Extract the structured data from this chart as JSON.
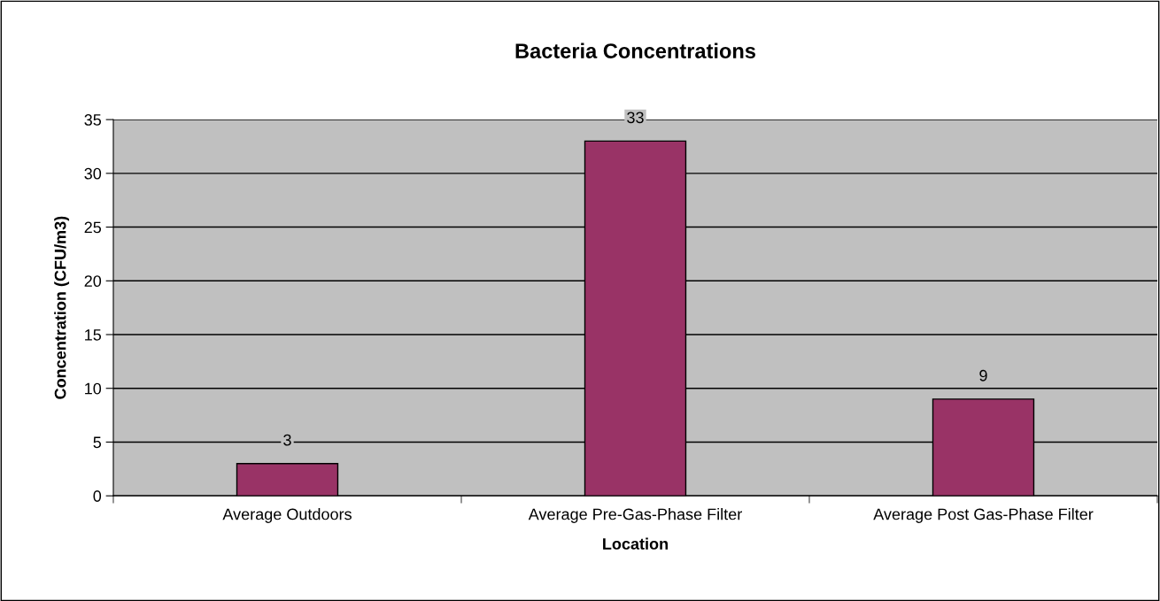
{
  "chart_data": {
    "type": "bar",
    "title": "Bacteria Concentrations",
    "xlabel": "Location",
    "ylabel": "Concentration (CFU/m3)",
    "categories": [
      "Average Outdoors",
      "Average Pre-Gas-Phase Filter",
      "Average Post Gas-Phase Filter"
    ],
    "values": [
      3,
      33,
      9
    ],
    "color": "#993366",
    "ylim": [
      0,
      35
    ],
    "yticks": [
      0,
      5,
      10,
      15,
      20,
      25,
      30,
      35
    ],
    "grid": "y",
    "data_labels": true,
    "legend": false
  }
}
